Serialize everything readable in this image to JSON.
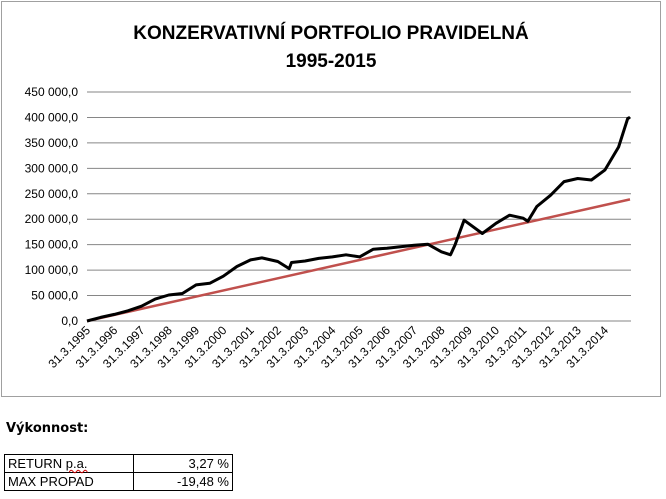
{
  "chart_data": {
    "type": "line",
    "title": [
      "KONZERVATIVNÍ PORTFOLIO PRAVIDELNÁ",
      "1995-2015"
    ],
    "xlabel": "",
    "ylabel": "",
    "ylim": [
      0,
      450000
    ],
    "yticks": [
      "0,0",
      "50 000,0",
      "100 000,0",
      "150 000,0",
      "200 000,0",
      "250 000,0",
      "300 000,0",
      "350 000,0",
      "400 000,0",
      "450 000,0"
    ],
    "xticks": [
      "31.3.1995",
      "31.3.1996",
      "31.3.1997",
      "31.3.1998",
      "31.3.1999",
      "31.3.2000",
      "31.3.2001",
      "31.3.2002",
      "31.3.2003",
      "31.3.2004",
      "31.3.2005",
      "31.3.2006",
      "31.3.2007",
      "31.3.2008",
      "31.3.2009",
      "31.3.2010",
      "31.3.2011",
      "31.3.2012",
      "31.3.2013",
      "31.3.2014"
    ],
    "grid": "horizontal",
    "legend": "none",
    "series": [
      {
        "color": "#000000",
        "points": [
          [
            "31.3.1995",
            0
          ],
          [
            "30.9.1995",
            7000
          ],
          [
            "31.3.1996",
            13000
          ],
          [
            "30.9.1996",
            20000
          ],
          [
            "31.3.1997",
            29000
          ],
          [
            "30.9.1997",
            43000
          ],
          [
            "31.3.1998",
            51000
          ],
          [
            "30.9.1998",
            54000
          ],
          [
            "31.3.1999",
            71000
          ],
          [
            "30.9.1999",
            74000
          ],
          [
            "31.3.2000",
            88000
          ],
          [
            "30.9.2000",
            107000
          ],
          [
            "31.3.2001",
            120000
          ],
          [
            "31.8.2001",
            124000
          ],
          [
            "31.3.2002",
            117000
          ],
          [
            "31.8.2002",
            103000
          ],
          [
            "30.9.2002",
            115000
          ],
          [
            "31.3.2003",
            118000
          ],
          [
            "30.9.2003",
            123000
          ],
          [
            "31.3.2004",
            126000
          ],
          [
            "30.9.2004",
            130000
          ],
          [
            "31.3.2005",
            126000
          ],
          [
            "30.9.2005",
            141000
          ],
          [
            "31.3.2006",
            143000
          ],
          [
            "30.9.2006",
            146000
          ],
          [
            "31.3.2007",
            149000
          ],
          [
            "30.9.2007",
            151000
          ],
          [
            "31.3.2008",
            136000
          ],
          [
            "31.7.2008",
            130000
          ],
          [
            "30.9.2008",
            150000
          ],
          [
            "31.1.2009",
            198000
          ],
          [
            "30.9.2009",
            172000
          ],
          [
            "31.3.2010",
            192000
          ],
          [
            "30.9.2010",
            208000
          ],
          [
            "31.3.2011",
            202000
          ],
          [
            "31.5.2011",
            196000
          ],
          [
            "30.9.2011",
            225000
          ],
          [
            "31.3.2012",
            247000
          ],
          [
            "30.9.2012",
            274000
          ],
          [
            "31.3.2013",
            280000
          ],
          [
            "30.9.2013",
            277000
          ],
          [
            "31.3.2014",
            297000
          ],
          [
            "30.9.2014",
            342000
          ],
          [
            "31.1.2015",
            398000
          ],
          [
            "28.2.2015",
            400000
          ]
        ]
      },
      {
        "color": "#c0504d",
        "points": [
          [
            "31.3.1995",
            0
          ],
          [
            "28.2.2015",
            239000
          ]
        ]
      }
    ]
  },
  "performance": {
    "title": "Výkonnost:",
    "rows": [
      {
        "label_main": "RETURN ",
        "label_suffix": "p.a.",
        "value": "3,27 %"
      },
      {
        "label_main": "MAX PROPAD",
        "label_suffix": "",
        "value": "-19,48 %"
      }
    ]
  }
}
